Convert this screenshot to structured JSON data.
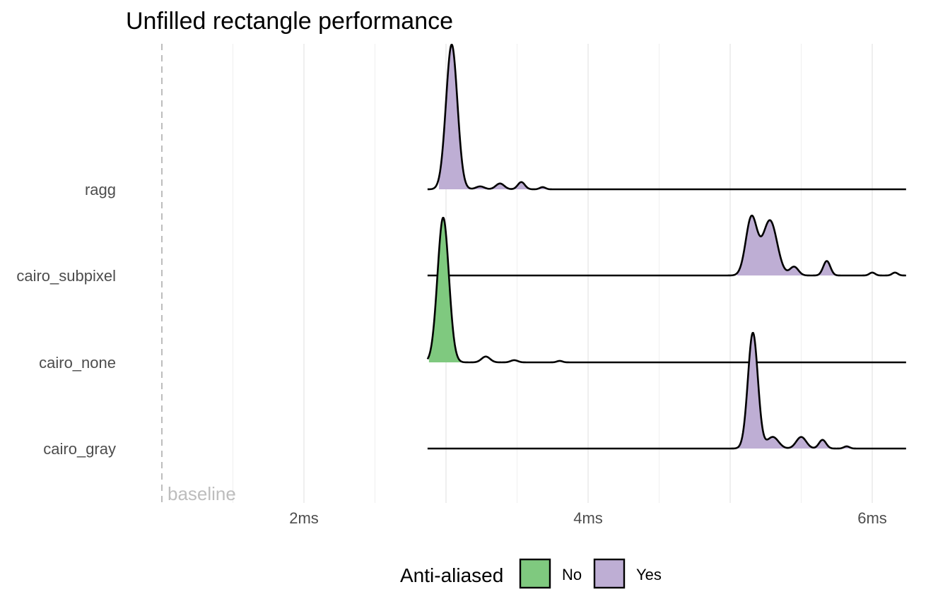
{
  "chart_data": {
    "type": "ridgeline",
    "title": "Unfilled rectangle performance",
    "xlabel": "",
    "ylabel": "",
    "xlim": [
      0.95,
      6.2
    ],
    "x_ticks": [
      {
        "value": 2,
        "label": "2ms"
      },
      {
        "value": 4,
        "label": "4ms"
      },
      {
        "value": 6,
        "label": "6ms"
      }
    ],
    "grid": true,
    "baseline": {
      "x": 1.0,
      "label": "baseline"
    },
    "legend": {
      "title": "Anti-aliased",
      "position": "bottom",
      "entries": [
        {
          "label": "No",
          "color": "#7fc97f"
        },
        {
          "label": "Yes",
          "color": "#beaed4"
        }
      ]
    },
    "categories": [
      "ragg",
      "cairo_subpixel",
      "cairo_none",
      "cairo_gray"
    ],
    "series": [
      {
        "category": "ragg",
        "fill": "Yes",
        "x_range": [
          2.87,
          6.24
        ],
        "fill_range": [
          2.95,
          3.7
        ],
        "peaks": [
          {
            "x": 3.04,
            "height": 1.0,
            "width": 0.04
          },
          {
            "x": 3.24,
            "height": 0.02,
            "width": 0.03
          },
          {
            "x": 3.38,
            "height": 0.04,
            "width": 0.03
          },
          {
            "x": 3.53,
            "height": 0.05,
            "width": 0.025
          },
          {
            "x": 3.68,
            "height": 0.015,
            "width": 0.02
          }
        ]
      },
      {
        "category": "cairo_subpixel",
        "fill": "Yes",
        "x_range": [
          2.87,
          6.24
        ],
        "fill_range": [
          5.05,
          5.8
        ],
        "peaks": [
          {
            "x": 5.15,
            "height": 0.4,
            "width": 0.04
          },
          {
            "x": 5.28,
            "height": 0.38,
            "width": 0.05
          },
          {
            "x": 5.45,
            "height": 0.06,
            "width": 0.03
          },
          {
            "x": 5.68,
            "height": 0.1,
            "width": 0.025
          },
          {
            "x": 6.0,
            "height": 0.02,
            "width": 0.02
          },
          {
            "x": 6.16,
            "height": 0.02,
            "width": 0.02
          }
        ]
      },
      {
        "category": "cairo_none",
        "fill": "No",
        "x_range": [
          2.87,
          6.24
        ],
        "fill_range": [
          2.88,
          3.2
        ],
        "peaks": [
          {
            "x": 2.98,
            "height": 1.0,
            "width": 0.04
          },
          {
            "x": 3.28,
            "height": 0.04,
            "width": 0.03
          },
          {
            "x": 3.48,
            "height": 0.015,
            "width": 0.025
          },
          {
            "x": 3.8,
            "height": 0.01,
            "width": 0.02
          }
        ]
      },
      {
        "category": "cairo_gray",
        "fill": "Yes",
        "x_range": [
          2.87,
          6.24
        ],
        "fill_range": [
          5.05,
          5.85
        ],
        "peaks": [
          {
            "x": 5.16,
            "height": 0.8,
            "width": 0.035
          },
          {
            "x": 5.3,
            "height": 0.08,
            "width": 0.04
          },
          {
            "x": 5.5,
            "height": 0.08,
            "width": 0.035
          },
          {
            "x": 5.65,
            "height": 0.06,
            "width": 0.025
          },
          {
            "x": 5.82,
            "height": 0.015,
            "width": 0.02
          }
        ]
      }
    ]
  }
}
